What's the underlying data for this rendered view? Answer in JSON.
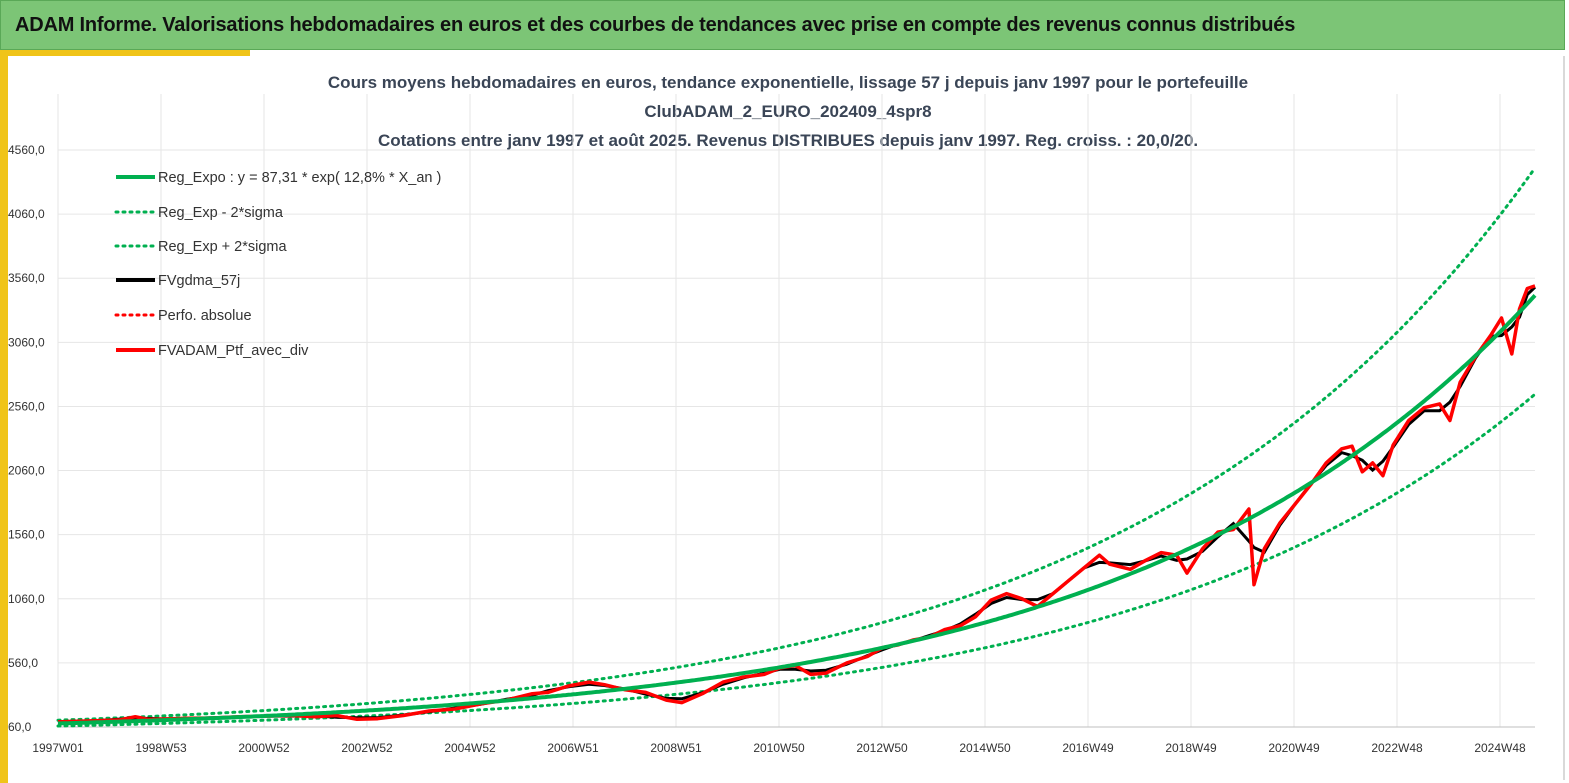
{
  "banner": {
    "title": "ADAM Informe. Valorisations hebdomadaires en euros et des courbes de tendances avec prise en compte des revenus connus distribués"
  },
  "colors": {
    "banner_bg": "#7cc576",
    "accent": "#f0c419",
    "trend": "#00b050",
    "smooth": "#000000",
    "portfolio": "#ff0000",
    "grid": "#e6e6e6"
  },
  "chart_data": {
    "type": "line",
    "title_lines": [
      "Cours moyens hebdomadaires  en euros, tendance exponentielle, lissage 57 j depuis janv 1997 pour le portefeuille",
      "ClubADAM_2_EURO_202409_4spr8",
      "Cotations  entre janv 1997 et août 2025. Revenus DISTRIBUES depuis janv 1997. Reg. croiss. : 20,0/20."
    ],
    "x_tick_labels": [
      "1997W01",
      "1998W53",
      "2000W52",
      "2002W52",
      "2004W52",
      "2006W51",
      "2008W51",
      "2010W50",
      "2012W50",
      "2014W50",
      "2016W49",
      "2018W49",
      "2020W49",
      "2022W48",
      "2024W48"
    ],
    "x_range_years": [
      1997.0,
      2025.65
    ],
    "y_ticks": [
      "60,0",
      "560,0",
      "1060,0",
      "1560,0",
      "2060,0",
      "2560,0",
      "3060,0",
      "3560,0",
      "4060,0",
      "4560,0"
    ],
    "ylim": [
      60,
      4560
    ],
    "grid": true,
    "legend_position": "top-left",
    "trend_model": {
      "a": 87.31,
      "rate": 0.128,
      "band_factor_high": 1.29,
      "band_factor_low": 0.775
    },
    "legend": [
      {
        "label": "Reg_Expo : y = 87,31 * exp( 12,8% *  X_an )",
        "color": "#00b050",
        "style": "solid"
      },
      {
        "label": "Reg_Exp - 2*sigma",
        "color": "#00b050",
        "style": "dotted"
      },
      {
        "label": "Reg_Exp + 2*sigma",
        "color": "#00b050",
        "style": "dotted"
      },
      {
        "label": "FVgdma_57j",
        "color": "#000000",
        "style": "solid"
      },
      {
        "label": "Perfo. absolue",
        "color": "#ff0000",
        "style": "dotted"
      },
      {
        "label": "FVADAM_Ptf_avec_div",
        "color": "#ff0000",
        "style": "solid"
      }
    ],
    "series": [
      {
        "name": "FVADAM_Ptf_avec_div",
        "points": [
          [
            1997.0,
            100
          ],
          [
            1997.4,
            105
          ],
          [
            1997.8,
            110
          ],
          [
            1998.2,
            115
          ],
          [
            1998.5,
            140
          ],
          [
            1998.75,
            120
          ],
          [
            1999.0,
            122
          ],
          [
            1999.5,
            128
          ],
          [
            2000.0,
            130
          ],
          [
            2000.5,
            140
          ],
          [
            2001.0,
            145
          ],
          [
            2001.5,
            150
          ],
          [
            2002.0,
            140
          ],
          [
            2002.4,
            150
          ],
          [
            2002.8,
            120
          ],
          [
            2003.2,
            125
          ],
          [
            2003.7,
            150
          ],
          [
            2004.2,
            185
          ],
          [
            2004.7,
            200
          ],
          [
            2005.2,
            240
          ],
          [
            2005.7,
            270
          ],
          [
            2006.2,
            320
          ],
          [
            2006.5,
            330
          ],
          [
            2006.9,
            380
          ],
          [
            2007.3,
            410
          ],
          [
            2007.6,
            390
          ],
          [
            2008.0,
            350
          ],
          [
            2008.4,
            330
          ],
          [
            2008.8,
            270
          ],
          [
            2009.1,
            250
          ],
          [
            2009.5,
            320
          ],
          [
            2009.9,
            410
          ],
          [
            2010.3,
            450
          ],
          [
            2010.7,
            470
          ],
          [
            2011.0,
            520
          ],
          [
            2011.3,
            540
          ],
          [
            2011.6,
            470
          ],
          [
            2011.9,
            480
          ],
          [
            2012.3,
            560
          ],
          [
            2012.7,
            610
          ],
          [
            2013.0,
            680
          ],
          [
            2013.3,
            700
          ],
          [
            2013.6,
            740
          ],
          [
            2013.9,
            760
          ],
          [
            2014.2,
            820
          ],
          [
            2014.5,
            850
          ],
          [
            2014.8,
            920
          ],
          [
            2015.1,
            1050
          ],
          [
            2015.4,
            1100
          ],
          [
            2015.7,
            1060
          ],
          [
            2016.0,
            1000
          ],
          [
            2016.3,
            1100
          ],
          [
            2016.6,
            1200
          ],
          [
            2016.9,
            1300
          ],
          [
            2017.2,
            1400
          ],
          [
            2017.4,
            1330
          ],
          [
            2017.8,
            1290
          ],
          [
            2018.1,
            1360
          ],
          [
            2018.4,
            1420
          ],
          [
            2018.7,
            1400
          ],
          [
            2018.9,
            1260
          ],
          [
            2019.2,
            1450
          ],
          [
            2019.5,
            1580
          ],
          [
            2019.8,
            1600
          ],
          [
            2020.1,
            1760
          ],
          [
            2020.2,
            1170
          ],
          [
            2020.4,
            1450
          ],
          [
            2020.7,
            1650
          ],
          [
            2021.0,
            1800
          ],
          [
            2021.3,
            1950
          ],
          [
            2021.6,
            2120
          ],
          [
            2021.9,
            2230
          ],
          [
            2022.1,
            2250
          ],
          [
            2022.3,
            2050
          ],
          [
            2022.5,
            2120
          ],
          [
            2022.7,
            2020
          ],
          [
            2022.9,
            2260
          ],
          [
            2023.2,
            2450
          ],
          [
            2023.5,
            2550
          ],
          [
            2023.8,
            2580
          ],
          [
            2024.0,
            2450
          ],
          [
            2024.2,
            2750
          ],
          [
            2024.5,
            2950
          ],
          [
            2024.8,
            3120
          ],
          [
            2025.0,
            3250
          ],
          [
            2025.2,
            2970
          ],
          [
            2025.35,
            3320
          ],
          [
            2025.5,
            3480
          ],
          [
            2025.65,
            3500
          ]
        ]
      }
    ]
  }
}
